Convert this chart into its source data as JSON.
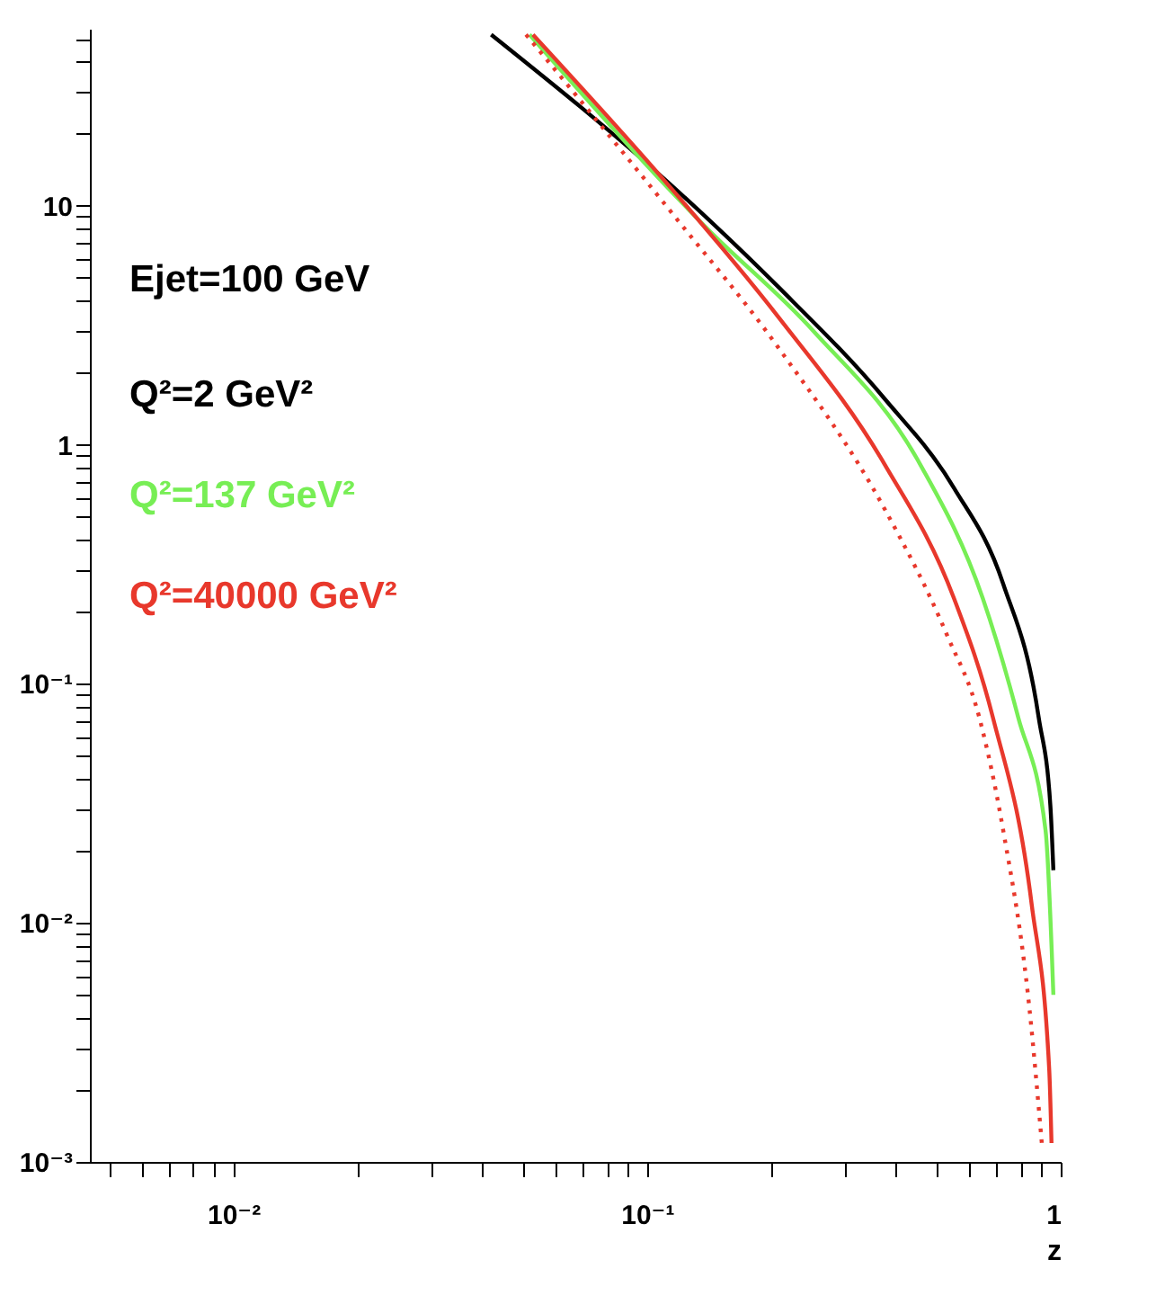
{
  "chart_data": {
    "type": "line",
    "xlabel": "z",
    "log": "xy",
    "grid": false,
    "legend": "top left",
    "marker": "none",
    "annotations": [
      "Ejet=100 GeV"
    ],
    "xlim": [
      0.0045,
      1.0
    ],
    "ylim": [
      0.001,
      55
    ],
    "xticks": [
      {
        "value": 0.005,
        "label": null
      },
      {
        "value": 0.006,
        "label": null
      },
      {
        "value": 0.007,
        "label": null
      },
      {
        "value": 0.008,
        "label": null
      },
      {
        "value": 0.009,
        "label": null
      },
      {
        "value": 0.01,
        "label": "10⁻²"
      },
      {
        "value": 0.02,
        "label": null
      },
      {
        "value": 0.03,
        "label": null
      },
      {
        "value": 0.04,
        "label": null
      },
      {
        "value": 0.05,
        "label": null
      },
      {
        "value": 0.06,
        "label": null
      },
      {
        "value": 0.07,
        "label": null
      },
      {
        "value": 0.08,
        "label": null
      },
      {
        "value": 0.09,
        "label": null
      },
      {
        "value": 0.1,
        "label": "10⁻¹"
      },
      {
        "value": 0.2,
        "label": null
      },
      {
        "value": 0.3,
        "label": null
      },
      {
        "value": 0.4,
        "label": null
      },
      {
        "value": 0.5,
        "label": null
      },
      {
        "value": 0.6,
        "label": null
      },
      {
        "value": 0.7,
        "label": null
      },
      {
        "value": 0.8,
        "label": null
      },
      {
        "value": 0.9,
        "label": null
      },
      1
    ],
    "yticks": [
      {
        "value": 0.001,
        "label": "10⁻³"
      },
      {
        "value": 0.002,
        "label": null
      },
      {
        "value": 0.003,
        "label": null
      },
      {
        "value": 0.004,
        "label": null
      },
      {
        "value": 0.005,
        "label": null
      },
      {
        "value": 0.006,
        "label": null
      },
      {
        "value": 0.007,
        "label": null
      },
      {
        "value": 0.008,
        "label": null
      },
      {
        "value": 0.009,
        "label": null
      },
      {
        "value": 0.01,
        "label": "10⁻²"
      },
      {
        "value": 0.02,
        "label": null
      },
      {
        "value": 0.03,
        "label": null
      },
      {
        "value": 0.04,
        "label": null
      },
      {
        "value": 0.05,
        "label": null
      },
      {
        "value": 0.06,
        "label": null
      },
      {
        "value": 0.07,
        "label": null
      },
      {
        "value": 0.08,
        "label": null
      },
      {
        "value": 0.09,
        "label": null
      },
      {
        "value": 0.1,
        "label": "10⁻¹"
      },
      {
        "value": 0.2,
        "label": null
      },
      {
        "value": 0.3,
        "label": null
      },
      {
        "value": 0.4,
        "label": null
      },
      {
        "value": 0.5,
        "label": null
      },
      {
        "value": 0.6,
        "label": null
      },
      {
        "value": 0.7,
        "label": null
      },
      {
        "value": 0.8,
        "label": null
      },
      {
        "value": 0.9,
        "label": null
      },
      1,
      {
        "value": 2,
        "label": null
      },
      {
        "value": 3,
        "label": null
      },
      {
        "value": 4,
        "label": null
      },
      {
        "value": 5,
        "label": null
      },
      {
        "value": 6,
        "label": null
      },
      {
        "value": 7,
        "label": null
      },
      {
        "value": 8,
        "label": null
      },
      {
        "value": 9,
        "label": null
      },
      10,
      {
        "value": 20,
        "label": null
      },
      {
        "value": 30,
        "label": null
      },
      {
        "value": 40,
        "label": null
      },
      {
        "value": 50,
        "label": null
      }
    ],
    "series": [
      {
        "name": "Q²=2 GeV²",
        "color": "#000000",
        "line_style": "solid",
        "x": [
          0.042,
          0.115,
          0.207,
          0.375,
          0.552,
          0.726,
          0.885,
          0.944,
          0.96
        ],
        "values": [
          52,
          12.1,
          4.6,
          1.56,
          0.66,
          0.262,
          0.072,
          0.031,
          0.0166
        ]
      },
      {
        "name": "Q²=137 GeV²",
        "color": "#77ee55",
        "line_style": "solid",
        "x": [
          0.052,
          0.139,
          0.252,
          0.457,
          0.648,
          0.79,
          0.919,
          0.96
        ],
        "values": [
          52,
          8.1,
          3.0,
          0.83,
          0.228,
          0.072,
          0.0244,
          0.005
        ]
      },
      {
        "name": "Q²=40000 GeV²",
        "color": "#e8382c",
        "line_style": "solid",
        "x": [
          0.053,
          0.115,
          0.207,
          0.375,
          0.552,
          0.686,
          0.851,
          0.938,
          0.95
        ],
        "values": [
          52,
          11.7,
          3.45,
          0.83,
          0.228,
          0.072,
          0.0119,
          0.00244,
          0.0012
        ]
      },
      {
        "color": "#e8382c",
        "line_style": "dotted",
        "x": [
          0.051,
          0.115,
          0.207,
          0.375,
          0.531,
          0.636,
          0.726,
          0.84,
          0.9
        ],
        "values": [
          52,
          9.3,
          2.57,
          0.54,
          0.16,
          0.072,
          0.0244,
          0.0044,
          0.0012
        ]
      }
    ]
  }
}
